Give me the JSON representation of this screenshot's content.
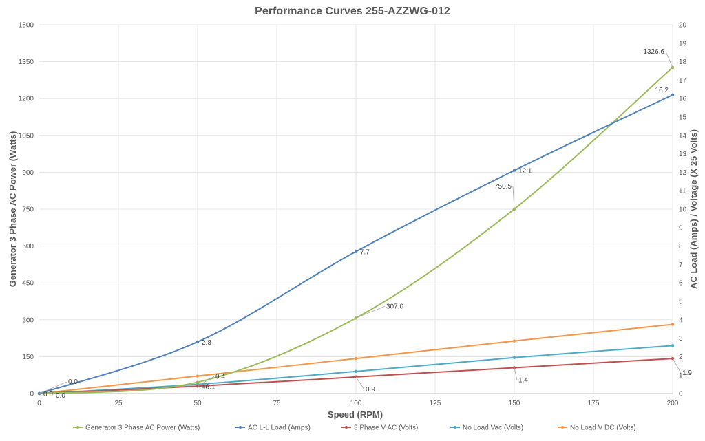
{
  "chart_data": {
    "type": "line",
    "title": "Performance Curves 255-AZZWG-012",
    "xlabel": "Speed (RPM)",
    "ylabel": "Generator 3 Phase AC Power (Watts)",
    "y2label": "AC Load (Amps) / Voltage (X 25 Volts)",
    "xlim": [
      0,
      200
    ],
    "ylim": [
      0,
      1500
    ],
    "y2lim": [
      0,
      20
    ],
    "x_ticks": [
      "0",
      "25",
      "50",
      "75",
      "100",
      "125",
      "150",
      "175",
      "200"
    ],
    "y_ticks": [
      "0",
      "150",
      "300",
      "450",
      "600",
      "750",
      "900",
      "1050",
      "1200",
      "1350",
      "1500"
    ],
    "y2_ticks": [
      "0",
      "1",
      "2",
      "3",
      "4",
      "5",
      "6",
      "7",
      "8",
      "9",
      "10",
      "11",
      "12",
      "13",
      "14",
      "15",
      "16",
      "17",
      "18",
      "19",
      "20"
    ],
    "grid": true,
    "legend_position": "bottom",
    "series": [
      {
        "name": "Generator 3 Phase AC Power (Watts)",
        "color": "#9bbb59",
        "axis": "left",
        "x": [
          0,
          50,
          100,
          150,
          200
        ],
        "y": [
          0,
          46.1,
          307.0,
          750.5,
          1326.6
        ],
        "labels": [
          "0.0",
          "46.1",
          "307.0",
          "750.5",
          "1326.6"
        ]
      },
      {
        "name": "AC L-L Load (Amps)",
        "color": "#4f81bd",
        "axis": "right",
        "x": [
          0,
          50,
          100,
          150,
          200
        ],
        "y": [
          0,
          2.8,
          7.7,
          12.1,
          16.2
        ],
        "labels": [
          "0.0",
          "2.8",
          "7.7",
          "12.1",
          "16.2"
        ]
      },
      {
        "name": "3 Phase V AC  (Volts)",
        "color": "#c0504d",
        "axis": "right",
        "x": [
          0,
          50,
          100,
          150,
          200
        ],
        "y": [
          0,
          0.4,
          0.9,
          1.4,
          1.9
        ],
        "labels": [
          "0.0",
          "0.4",
          "0.9",
          "1.4",
          "1.9"
        ]
      },
      {
        "name": "No Load Vac (Volts)",
        "color": "#4bacc6",
        "axis": "right",
        "x": [
          0,
          50,
          100,
          150,
          200
        ],
        "y": [
          0,
          0.5,
          1.2,
          1.95,
          2.6
        ],
        "labels": []
      },
      {
        "name": "No Load V DC (Volts)",
        "color": "#f79646",
        "axis": "right",
        "x": [
          0,
          50,
          100,
          150,
          200
        ],
        "y": [
          0,
          0.95,
          1.9,
          2.85,
          3.75
        ],
        "labels": []
      }
    ]
  }
}
